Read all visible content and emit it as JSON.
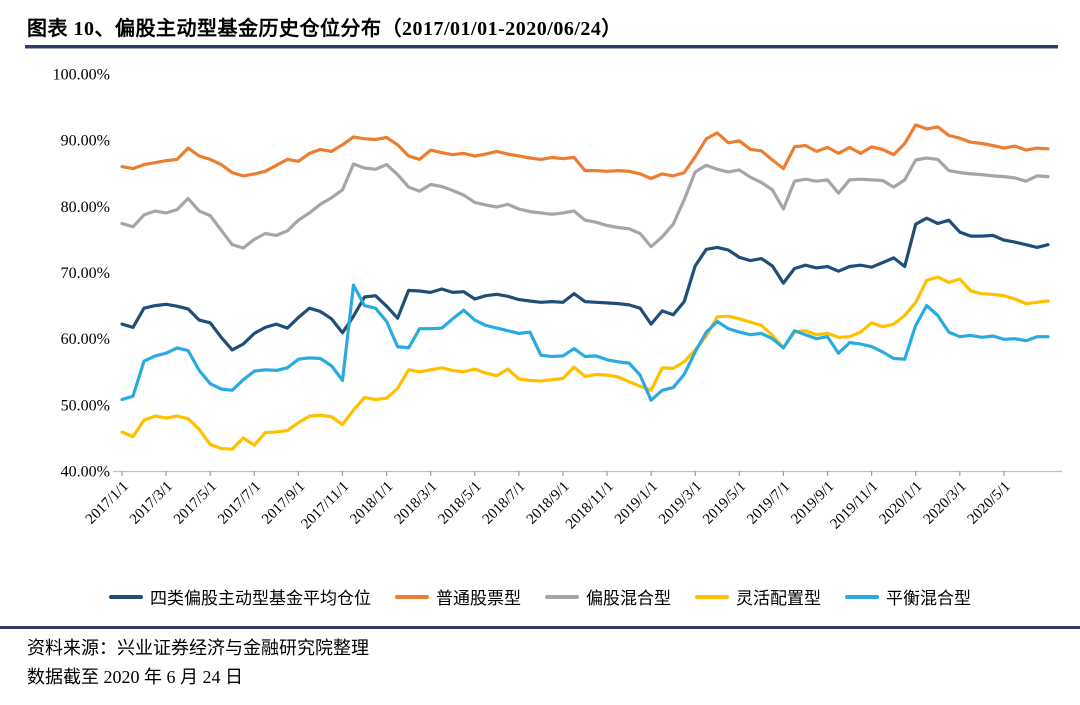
{
  "header": {
    "title": "图表 10、偏股主动型基金历史仓位分布（2017/01/01-2020/06/24）"
  },
  "footer": {
    "source_label": "资料来源：兴业证券经济与金融研究院整理",
    "data_note": "数据截至 2020 年 6 月 24 日"
  },
  "colors": {
    "rule": "#2E3D66",
    "axis_line": "#BFBFBF",
    "tick_mark": "#9E9E9E",
    "label_text": "#000000"
  },
  "chart_data": {
    "type": "line",
    "title": "偏股主动型基金历史仓位分布",
    "date_range": "2017/01/01-2020/06/24",
    "ylim": [
      40,
      100
    ],
    "grid": false,
    "legend_position": "bottom",
    "y_tick_labels": [
      "100.00%",
      "90.00%",
      "80.00%",
      "70.00%",
      "60.00%",
      "50.00%",
      "40.00%"
    ],
    "y_tick_values": [
      100,
      90,
      80,
      70,
      60,
      50,
      40
    ],
    "x_tick_labels": [
      "2017/1/1",
      "2017/3/1",
      "2017/5/1",
      "2017/7/1",
      "2017/9/1",
      "2017/11/1",
      "2018/1/1",
      "2018/3/1",
      "2018/5/1",
      "2018/7/1",
      "2018/9/1",
      "2018/11/1",
      "2019/1/1",
      "2019/3/1",
      "2019/5/1",
      "2019/7/1",
      "2019/9/1",
      "2019/11/1",
      "2020/1/1",
      "2020/3/1",
      "2020/5/1"
    ],
    "x_sampling": "values estimated at half-month steps from 2017/1/1 to 2020/6/24",
    "series": [
      {
        "name": "四类偏股主动型基金平均仓位",
        "color": "#1F4E79",
        "values": [
          62.2,
          61.7,
          64.6,
          65.0,
          65.2,
          64.9,
          64.5,
          62.8,
          62.4,
          60.2,
          58.3,
          59.2,
          60.8,
          61.7,
          62.2,
          61.6,
          63.2,
          64.6,
          64.1,
          63.0,
          60.9,
          63.4,
          66.3,
          66.5,
          64.9,
          63.1,
          67.3,
          67.2,
          67.0,
          67.5,
          67.0,
          67.1,
          66.0,
          66.5,
          66.7,
          66.4,
          65.9,
          65.7,
          65.5,
          65.6,
          65.5,
          66.8,
          65.6,
          65.5,
          65.4,
          65.3,
          65.1,
          64.6,
          62.2,
          64.2,
          63.6,
          65.6,
          71.0,
          73.5,
          73.8,
          73.4,
          72.3,
          71.8,
          72.1,
          71.0,
          68.4,
          70.6,
          71.1,
          70.7,
          70.9,
          70.2,
          70.9,
          71.1,
          70.8,
          71.5,
          72.2,
          70.9,
          77.3,
          78.2,
          77.4,
          77.9,
          76.1,
          75.5,
          75.5,
          75.6,
          74.9,
          74.6,
          74.2,
          73.8,
          74.2
        ]
      },
      {
        "name": "普通股票型",
        "color": "#ED7D31",
        "values": [
          86.0,
          85.7,
          86.3,
          86.6,
          86.9,
          87.1,
          88.8,
          87.6,
          87.1,
          86.3,
          85.1,
          84.6,
          84.9,
          85.3,
          86.2,
          87.1,
          86.8,
          88.0,
          88.6,
          88.3,
          89.3,
          90.5,
          90.2,
          90.1,
          90.4,
          89.3,
          87.6,
          87.1,
          88.5,
          88.1,
          87.8,
          88.0,
          87.6,
          87.9,
          88.3,
          87.9,
          87.6,
          87.3,
          87.1,
          87.4,
          87.2,
          87.4,
          85.4,
          85.4,
          85.3,
          85.4,
          85.3,
          84.9,
          84.2,
          84.9,
          84.6,
          85.1,
          87.5,
          90.2,
          91.1,
          89.6,
          89.9,
          88.6,
          88.4,
          87.0,
          85.7,
          89.0,
          89.2,
          88.3,
          88.9,
          88.0,
          88.9,
          88.0,
          89.0,
          88.6,
          87.8,
          89.5,
          92.3,
          91.7,
          92.0,
          90.7,
          90.3,
          89.7,
          89.5,
          89.2,
          88.8,
          89.1,
          88.5,
          88.8,
          88.7
        ]
      },
      {
        "name": "偏股混合型",
        "color": "#A6A6A6",
        "values": [
          77.4,
          76.9,
          78.7,
          79.3,
          79.0,
          79.5,
          81.2,
          79.3,
          78.6,
          76.4,
          74.2,
          73.7,
          75.0,
          75.9,
          75.6,
          76.3,
          77.9,
          79.0,
          80.3,
          81.3,
          82.5,
          86.4,
          85.8,
          85.6,
          86.3,
          84.8,
          82.9,
          82.3,
          83.3,
          83.0,
          82.4,
          81.7,
          80.6,
          80.2,
          79.9,
          80.3,
          79.6,
          79.2,
          79.0,
          78.8,
          79.0,
          79.3,
          77.9,
          77.6,
          77.1,
          76.8,
          76.6,
          75.9,
          73.9,
          75.4,
          77.3,
          81.0,
          85.2,
          86.2,
          85.6,
          85.2,
          85.5,
          84.4,
          83.6,
          82.5,
          79.6,
          83.8,
          84.1,
          83.8,
          84.0,
          82.0,
          84.0,
          84.1,
          84.0,
          83.9,
          82.9,
          84.0,
          87.0,
          87.3,
          87.1,
          85.4,
          85.1,
          84.9,
          84.8,
          84.6,
          84.5,
          84.3,
          83.8,
          84.6,
          84.5
        ]
      },
      {
        "name": "灵活配置型",
        "color": "#FFC000",
        "values": [
          45.9,
          45.2,
          47.7,
          48.3,
          48.0,
          48.3,
          47.9,
          46.3,
          44.0,
          43.4,
          43.3,
          45.0,
          43.9,
          45.8,
          45.9,
          46.1,
          47.3,
          48.3,
          48.4,
          48.2,
          47.0,
          49.2,
          51.1,
          50.8,
          51.0,
          52.5,
          55.3,
          55.0,
          55.3,
          55.6,
          55.2,
          55.0,
          55.4,
          54.8,
          54.4,
          55.4,
          53.9,
          53.7,
          53.6,
          53.8,
          54.0,
          55.7,
          54.3,
          54.6,
          54.5,
          54.2,
          53.5,
          52.8,
          52.2,
          55.6,
          55.5,
          56.5,
          58.3,
          60.4,
          63.3,
          63.4,
          63.0,
          62.5,
          62.0,
          60.5,
          58.6,
          61.0,
          61.2,
          60.6,
          60.8,
          60.2,
          60.3,
          61.0,
          62.4,
          61.8,
          62.2,
          63.5,
          65.5,
          68.8,
          69.3,
          68.5,
          69.0,
          67.2,
          66.8,
          66.7,
          66.5,
          66.0,
          65.3,
          65.5,
          65.7
        ]
      },
      {
        "name": "平衡混合型",
        "color": "#29ABE2",
        "values": [
          50.8,
          51.3,
          56.6,
          57.4,
          57.8,
          58.6,
          58.2,
          55.2,
          53.2,
          52.4,
          52.2,
          53.8,
          55.1,
          55.3,
          55.2,
          55.6,
          56.9,
          57.1,
          57.0,
          55.9,
          53.7,
          68.1,
          65.0,
          64.6,
          62.6,
          58.8,
          58.6,
          61.5,
          61.5,
          61.6,
          63.0,
          64.3,
          62.8,
          62.0,
          61.6,
          61.2,
          60.8,
          61.0,
          57.5,
          57.3,
          57.4,
          58.5,
          57.3,
          57.4,
          56.8,
          56.5,
          56.3,
          54.5,
          50.7,
          52.2,
          52.6,
          54.6,
          58.0,
          61.0,
          62.6,
          61.5,
          61.0,
          60.6,
          60.8,
          60.0,
          58.6,
          61.2,
          60.6,
          60.0,
          60.3,
          57.8,
          59.4,
          59.2,
          58.8,
          58.0,
          57.0,
          56.9,
          62.0,
          65.0,
          63.5,
          61.0,
          60.3,
          60.5,
          60.2,
          60.4,
          59.9,
          60.0,
          59.7,
          60.3,
          60.3
        ]
      }
    ]
  }
}
